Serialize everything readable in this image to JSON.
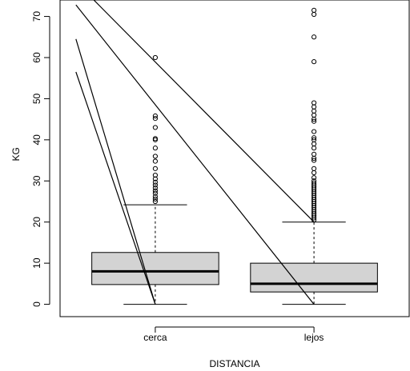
{
  "chart_data": {
    "type": "boxplot",
    "title": "",
    "xlabel": "DISTANCIA",
    "ylabel": "KG",
    "ylim": [
      -3,
      74
    ],
    "yticks": [
      0,
      10,
      20,
      30,
      40,
      50,
      60,
      70
    ],
    "grid": false,
    "categories": [
      "cerca",
      "lejos"
    ],
    "boxes": [
      {
        "category": "cerca",
        "min": 0,
        "q1": 4.8,
        "median": 8,
        "q3": 12.6,
        "whisker_high": 24.2,
        "outliers": [
          25,
          25.6,
          26.2,
          27,
          27.6,
          28.3,
          29,
          29.7,
          30.5,
          31.4,
          33,
          34.8,
          36,
          38,
          40,
          40.3,
          43,
          45.2,
          45.8,
          60
        ]
      },
      {
        "category": "lejos",
        "min": 0,
        "q1": 3,
        "median": 5,
        "q3": 10,
        "whisker_high": 20,
        "outliers": [
          20.5,
          21,
          21.5,
          22,
          22.5,
          23,
          23.5,
          24,
          24.5,
          25,
          25.5,
          26,
          26.5,
          27,
          27.5,
          28,
          28.5,
          29,
          29.5,
          30,
          30.8,
          32,
          33,
          35,
          35.5,
          36.5,
          38,
          39,
          40,
          40.5,
          42,
          44.5,
          45,
          46,
          47,
          48,
          49,
          59,
          65,
          70.5,
          71.5
        ]
      }
    ],
    "lines": [
      {
        "x": [
          0.5,
          1.0
        ],
        "y": [
          56.5,
          0
        ]
      },
      {
        "x": [
          0.5,
          1.0
        ],
        "y": [
          64.5,
          0
        ]
      },
      {
        "x": [
          0.5,
          2.0
        ],
        "y": [
          72.8,
          0
        ]
      },
      {
        "x": [
          0.6,
          2.0
        ],
        "y": [
          74.5,
          20
        ]
      }
    ],
    "colors": {
      "box_fill": "#d3d3d3",
      "stroke": "#000000",
      "background": "#ffffff"
    }
  }
}
